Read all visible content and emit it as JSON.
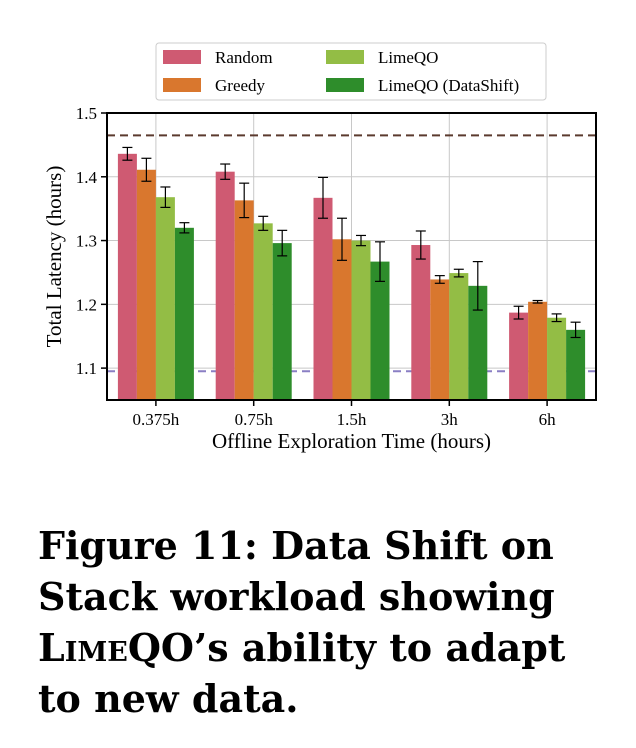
{
  "chart_data": {
    "type": "bar",
    "categories": [
      "0.375h",
      "0.75h",
      "1.5h",
      "3h",
      "6h"
    ],
    "xlabel": "Offline Exploration Time (hours)",
    "ylabel": "Total Latency (hours)",
    "ylim": [
      1.05,
      1.5
    ],
    "yticks": [
      "1.1",
      "1.2",
      "1.3",
      "1.4",
      "1.5"
    ],
    "grid": true,
    "legend_position": "top-center",
    "series": [
      {
        "name": "Random",
        "color": "#cf5a72",
        "values": [
          1.436,
          1.408,
          1.367,
          1.293,
          1.187
        ],
        "err": [
          0.01,
          0.012,
          0.032,
          0.022,
          0.01
        ]
      },
      {
        "name": "Greedy",
        "color": "#d9772e",
        "values": [
          1.411,
          1.363,
          1.302,
          1.239,
          1.204
        ],
        "err": [
          0.018,
          0.027,
          0.033,
          0.006,
          0.002
        ]
      },
      {
        "name": "LimeQO",
        "color": "#93bd45",
        "values": [
          1.368,
          1.327,
          1.3,
          1.249,
          1.179
        ],
        "err": [
          0.016,
          0.011,
          0.008,
          0.006,
          0.006
        ]
      },
      {
        "name": "LimeQO (DataShift)",
        "color": "#2e8d2b",
        "values": [
          1.32,
          1.296,
          1.267,
          1.229,
          1.16
        ],
        "err": [
          0.008,
          0.02,
          0.031,
          0.038,
          0.012
        ]
      }
    ],
    "reference_lines": [
      {
        "value": 1.465,
        "color": "#5b3a2e"
      },
      {
        "value": 1.095,
        "color": "#8a7fc4"
      }
    ]
  },
  "caption": {
    "prefix": "Figure 11: Data Shift on Stack workload showing ",
    "name": "LimeQO",
    "suffix": "’s ability to adapt to new data."
  }
}
